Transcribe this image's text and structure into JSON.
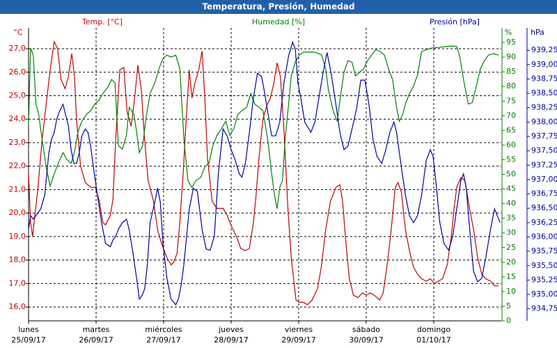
{
  "chart_data": {
    "type": "line",
    "title": "Temperatura, Presión, Humedad",
    "axis_titles": {
      "y": "Temp. [°C]",
      "y_unit": "°C",
      "y2": "Humedad [%]",
      "y2_unit": "%",
      "y3": "Presión [hPa]",
      "y3_unit": "hPa"
    },
    "xlim": [
      0,
      7
    ],
    "xticks": [
      0,
      1,
      2,
      3,
      4,
      5,
      6
    ],
    "xtick_labels": [
      [
        "lunes",
        "25/09/17"
      ],
      [
        "martes",
        "26/09/17"
      ],
      [
        "miércoles",
        "27/09/17"
      ],
      [
        "jueves",
        "28/09/17"
      ],
      [
        "viernes",
        "29/09/17"
      ],
      [
        "sábado",
        "30/09/17"
      ],
      [
        "domingo",
        "01/10/17"
      ]
    ],
    "ylim": [
      15.41,
      27.89
    ],
    "yticks": [
      {
        "value": 16,
        "label": "16,0"
      },
      {
        "value": 17,
        "label": "17,0"
      },
      {
        "value": 18,
        "label": "18,0"
      },
      {
        "value": 19,
        "label": "19,0"
      },
      {
        "value": 20,
        "label": "20,0"
      },
      {
        "value": 21,
        "label": "21,0"
      },
      {
        "value": 22,
        "label": "22,0"
      },
      {
        "value": 23,
        "label": "23,0"
      },
      {
        "value": 24,
        "label": "24,0"
      },
      {
        "value": 25,
        "label": "25,0"
      },
      {
        "value": 26,
        "label": "26,0"
      },
      {
        "value": 27,
        "label": "27,0"
      }
    ],
    "y2lim": [
      0,
      100
    ],
    "y2ticks": [
      0,
      5,
      10,
      15,
      20,
      25,
      30,
      35,
      40,
      45,
      50,
      55,
      60,
      65,
      70,
      75,
      80,
      85,
      90,
      95
    ],
    "y3lim": [
      934.54,
      939.64
    ],
    "y3ticks": [
      {
        "value": 934.75,
        "label": "934,75"
      },
      {
        "value": 935,
        "label": "935,00"
      },
      {
        "value": 935.25,
        "label": "935,25"
      },
      {
        "value": 935.5,
        "label": "935,50"
      },
      {
        "value": 935.75,
        "label": "935,75"
      },
      {
        "value": 936,
        "label": "936,00"
      },
      {
        "value": 936.25,
        "label": "936,25"
      },
      {
        "value": 936.5,
        "label": "936,50"
      },
      {
        "value": 936.75,
        "label": "936,75"
      },
      {
        "value": 937,
        "label": "937,00"
      },
      {
        "value": 937.25,
        "label": "937,25"
      },
      {
        "value": 937.5,
        "label": "937,50"
      },
      {
        "value": 937.75,
        "label": "937,75"
      },
      {
        "value": 938,
        "label": "938,00"
      },
      {
        "value": 938.25,
        "label": "938,25"
      },
      {
        "value": 938.5,
        "label": "938,50"
      },
      {
        "value": 938.75,
        "label": "938,75"
      },
      {
        "value": 939,
        "label": "939,00"
      },
      {
        "value": 939.25,
        "label": "939,25"
      }
    ],
    "grid": true,
    "series": [
      {
        "name": "Temperatura",
        "axis": "y",
        "color": "#c00000",
        "x": [
          0.0,
          0.03,
          0.06,
          0.14,
          0.2,
          0.26,
          0.32,
          0.38,
          0.43,
          0.48,
          0.54,
          0.59,
          0.64,
          0.68,
          0.71,
          0.77,
          0.84,
          0.92,
          0.99,
          1.05,
          1.1,
          1.14,
          1.21,
          1.25,
          1.29,
          1.35,
          1.41,
          1.46,
          1.52,
          1.57,
          1.62,
          1.67,
          1.72,
          1.77,
          1.85,
          1.91,
          1.97,
          2.05,
          2.11,
          2.15,
          2.2,
          2.24,
          2.29,
          2.34,
          2.38,
          2.42,
          2.46,
          2.52,
          2.57,
          2.61,
          2.65,
          2.72,
          2.79,
          2.88,
          2.94,
          3.01,
          3.08,
          3.14,
          3.21,
          3.27,
          3.33,
          3.37,
          3.41,
          3.47,
          3.53,
          3.58,
          3.63,
          3.68,
          3.73,
          3.78,
          3.84,
          3.89,
          3.96,
          4.01,
          4.07,
          4.13,
          4.2,
          4.28,
          4.34,
          4.4,
          4.47,
          4.55,
          4.61,
          4.65,
          4.7,
          4.75,
          4.81,
          4.88,
          4.94,
          5.0,
          5.06,
          5.12,
          5.2,
          5.25,
          5.31,
          5.37,
          5.43,
          5.47,
          5.52,
          5.58,
          5.64,
          5.7,
          5.76,
          5.82,
          5.89,
          5.95,
          6.01,
          6.07,
          6.13,
          6.2,
          6.26,
          6.3,
          6.34,
          6.4,
          6.46,
          6.53,
          6.59,
          6.65,
          6.71,
          6.77,
          6.84,
          6.9,
          6.96
        ],
        "values": [
          21.7,
          19.6,
          19.0,
          21.1,
          23.1,
          24.6,
          26.1,
          27.3,
          27.0,
          25.7,
          25.3,
          25.8,
          26.8,
          25.8,
          24.0,
          22.0,
          21.3,
          21.1,
          21.1,
          20.5,
          19.6,
          19.5,
          19.9,
          20.6,
          23.1,
          26.1,
          26.2,
          24.3,
          23.7,
          24.9,
          26.3,
          25.2,
          23.1,
          21.4,
          20.5,
          19.3,
          18.7,
          18.1,
          17.8,
          17.9,
          18.3,
          19.6,
          21.7,
          24.3,
          26.1,
          24.9,
          25.5,
          26.1,
          26.9,
          24.9,
          22.3,
          20.5,
          20.2,
          20.2,
          19.9,
          19.4,
          19.0,
          18.5,
          18.4,
          18.5,
          19.6,
          20.8,
          22.3,
          24.0,
          24.6,
          24.9,
          25.5,
          26.4,
          25.8,
          23.6,
          20.2,
          18.1,
          16.3,
          16.2,
          16.2,
          16.1,
          16.3,
          16.8,
          17.8,
          19.3,
          20.5,
          21.1,
          21.2,
          20.5,
          18.7,
          17.2,
          16.5,
          16.4,
          16.6,
          16.5,
          16.6,
          16.5,
          16.3,
          16.6,
          17.8,
          19.3,
          21.1,
          21.3,
          20.9,
          19.3,
          18.4,
          17.7,
          17.4,
          17.2,
          17.1,
          17.2,
          17.0,
          17.1,
          17.2,
          17.8,
          19.0,
          20.2,
          21.1,
          21.5,
          21.4,
          20.2,
          19.3,
          18.1,
          17.4,
          17.2,
          17.1,
          16.9,
          16.9
        ]
      },
      {
        "name": "Humedad",
        "axis": "y2",
        "color": "#008000",
        "x": [
          0.0,
          0.03,
          0.07,
          0.11,
          0.15,
          0.2,
          0.26,
          0.32,
          0.38,
          0.44,
          0.51,
          0.57,
          0.63,
          0.69,
          0.73,
          0.79,
          0.86,
          0.92,
          0.98,
          1.04,
          1.1,
          1.18,
          1.23,
          1.28,
          1.33,
          1.39,
          1.45,
          1.49,
          1.56,
          1.6,
          1.64,
          1.69,
          1.74,
          1.8,
          1.87,
          1.93,
          1.99,
          2.05,
          2.11,
          2.18,
          2.24,
          2.3,
          2.36,
          2.42,
          2.48,
          2.55,
          2.61,
          2.67,
          2.73,
          2.79,
          2.86,
          2.92,
          2.98,
          3.04,
          3.1,
          3.16,
          3.23,
          3.29,
          3.35,
          3.41,
          3.47,
          3.54,
          3.6,
          3.64,
          3.68,
          3.72,
          3.76,
          3.8,
          3.85,
          3.89,
          3.95,
          4.01,
          4.07,
          4.22,
          4.28,
          4.34,
          4.4,
          4.44,
          4.51,
          4.57,
          4.61,
          4.67,
          4.73,
          4.79,
          4.84,
          4.9,
          4.96,
          5.02,
          5.08,
          5.14,
          5.21,
          5.27,
          5.33,
          5.39,
          5.45,
          5.49,
          5.54,
          5.58,
          5.64,
          5.7,
          5.76,
          5.82,
          5.89,
          5.97,
          6.07,
          6.18,
          6.28,
          6.34,
          6.38,
          6.44,
          6.51,
          6.57,
          6.63,
          6.69,
          6.75,
          6.81,
          6.88,
          6.96
        ],
        "values": [
          66.9,
          93.1,
          90.7,
          74.0,
          70.5,
          62.1,
          52.6,
          46.0,
          50.2,
          53.8,
          57.4,
          55.0,
          53.8,
          58.6,
          64.5,
          68.1,
          70.5,
          71.7,
          74.0,
          75.2,
          77.6,
          80.0,
          82.4,
          81.2,
          59.8,
          58.6,
          63.3,
          72.9,
          70.5,
          64.5,
          57.4,
          59.8,
          69.3,
          77.6,
          81.2,
          86.0,
          89.5,
          90.7,
          90.0,
          90.7,
          86.0,
          62.1,
          47.9,
          45.5,
          47.9,
          49.0,
          52.6,
          53.8,
          59.8,
          63.3,
          65.7,
          68.1,
          63.3,
          65.7,
          70.5,
          71.7,
          72.9,
          77.6,
          74.0,
          72.9,
          71.7,
          62.1,
          50.2,
          43.1,
          38.3,
          45.5,
          47.9,
          62.1,
          74.0,
          83.6,
          88.3,
          90.7,
          91.7,
          91.7,
          91.4,
          90.7,
          86.0,
          78.8,
          71.7,
          68.1,
          75.2,
          84.8,
          88.8,
          88.3,
          83.6,
          84.8,
          86.0,
          88.8,
          90.7,
          92.6,
          91.9,
          90.7,
          86.0,
          82.4,
          72.9,
          68.1,
          70.5,
          74.0,
          77.6,
          80.0,
          84.0,
          91.9,
          92.6,
          93.1,
          93.3,
          93.6,
          93.8,
          93.6,
          90.7,
          82.4,
          74.0,
          74.5,
          80.0,
          86.0,
          88.8,
          90.7,
          91.2,
          90.7
        ]
      },
      {
        "name": "Presión",
        "axis": "y3",
        "color": "#0000a0",
        "x": [
          0.0,
          0.03,
          0.07,
          0.11,
          0.18,
          0.24,
          0.3,
          0.34,
          0.38,
          0.42,
          0.46,
          0.51,
          0.55,
          0.59,
          0.63,
          0.67,
          0.71,
          0.75,
          0.79,
          0.84,
          0.88,
          0.92,
          0.96,
          1.02,
          1.08,
          1.14,
          1.21,
          1.25,
          1.29,
          1.33,
          1.39,
          1.45,
          1.49,
          1.54,
          1.6,
          1.64,
          1.68,
          1.72,
          1.76,
          1.8,
          1.87,
          1.91,
          1.95,
          1.99,
          2.05,
          2.11,
          2.18,
          2.22,
          2.26,
          2.3,
          2.34,
          2.38,
          2.44,
          2.5,
          2.57,
          2.63,
          2.69,
          2.75,
          2.81,
          2.88,
          2.94,
          3.0,
          3.06,
          3.12,
          3.16,
          3.21,
          3.27,
          3.33,
          3.39,
          3.45,
          3.49,
          3.54,
          3.6,
          3.66,
          3.72,
          3.78,
          3.85,
          3.91,
          3.95,
          3.99,
          4.03,
          4.09,
          4.18,
          4.24,
          4.3,
          4.36,
          4.42,
          4.48,
          4.55,
          4.61,
          4.67,
          4.73,
          4.79,
          4.86,
          4.92,
          4.98,
          5.04,
          5.1,
          5.16,
          5.23,
          5.29,
          5.35,
          5.41,
          5.45,
          5.52,
          5.58,
          5.64,
          5.7,
          5.76,
          5.82,
          5.89,
          5.95,
          5.99,
          6.03,
          6.09,
          6.15,
          6.22,
          6.28,
          6.34,
          6.4,
          6.44,
          6.48,
          6.55,
          6.59,
          6.65,
          6.71,
          6.77,
          6.84,
          6.9,
          6.94,
          6.98
        ],
        "values": [
          936.13,
          936.37,
          936.31,
          936.37,
          936.49,
          936.73,
          937.46,
          937.7,
          937.82,
          938.06,
          938.19,
          938.31,
          938.12,
          937.94,
          937.52,
          937.28,
          937.28,
          937.46,
          937.76,
          937.88,
          937.82,
          937.58,
          937.22,
          936.73,
          936.25,
          935.89,
          935.83,
          935.95,
          936.01,
          936.13,
          936.25,
          936.31,
          936.13,
          935.77,
          935.28,
          934.92,
          934.98,
          935.1,
          935.52,
          936.25,
          936.61,
          936.85,
          936.61,
          935.89,
          935.28,
          934.92,
          934.82,
          934.92,
          935.16,
          935.52,
          936.01,
          936.49,
          936.85,
          936.79,
          936.13,
          935.79,
          935.77,
          936.01,
          937.1,
          937.88,
          937.76,
          937.52,
          937.34,
          937.1,
          937.04,
          937.28,
          937.82,
          938.43,
          938.85,
          938.79,
          938.55,
          938.19,
          937.76,
          937.76,
          938.0,
          938.67,
          939.15,
          939.39,
          939.27,
          938.67,
          938.43,
          938.0,
          937.82,
          938.0,
          938.43,
          938.85,
          939.21,
          938.85,
          938.31,
          937.82,
          937.52,
          937.58,
          937.88,
          938.25,
          938.73,
          938.73,
          938.31,
          937.7,
          937.4,
          937.28,
          937.52,
          937.82,
          938.0,
          937.82,
          937.22,
          936.73,
          936.37,
          936.25,
          936.37,
          936.73,
          937.34,
          937.52,
          937.4,
          936.98,
          936.25,
          935.89,
          935.77,
          936.01,
          936.49,
          936.98,
          937.1,
          936.85,
          935.89,
          935.4,
          935.22,
          935.28,
          935.64,
          936.13,
          936.49,
          936.37,
          936.25
        ]
      }
    ]
  }
}
